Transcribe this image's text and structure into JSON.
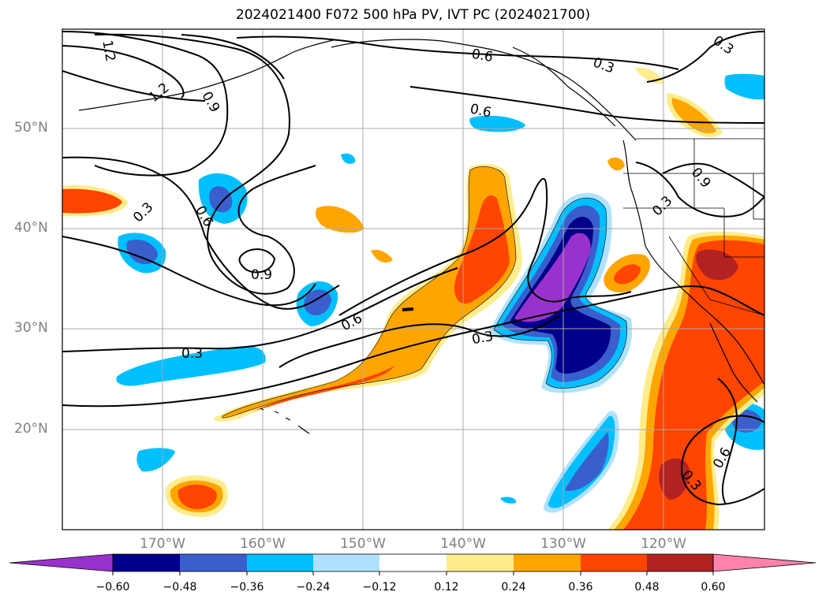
{
  "title": "2024021400 F072 500 hPa PV, IVT PC (2024021700)",
  "lat_labels": [
    "50°N",
    "40°N",
    "30°N",
    "20°N"
  ],
  "lon_labels": [
    "170°W",
    "160°W",
    "150°W",
    "140°W",
    "130°W",
    "120°W"
  ],
  "contour_labels": [
    "1.2",
    "1.2",
    "0.9",
    "0.9",
    "0.6",
    "0.6",
    "0.6",
    "0.6",
    "0.3",
    "0.3",
    "0.3",
    "0.3",
    "0.3",
    "0.9",
    "0.3",
    "0.6",
    "0.3"
  ],
  "colorbar": {
    "ticks": [
      "−0.60",
      "−0.48",
      "−0.36",
      "−0.24",
      "−0.12",
      "0.12",
      "0.24",
      "0.36",
      "0.48",
      "0.60"
    ],
    "colors": [
      "#9932cc",
      "#00008b",
      "#3a5fcd",
      "#00bfff",
      "#b0e2ff",
      "#ffffff",
      "#ffec8b",
      "#ffa500",
      "#ff4500",
      "#b22222",
      "#ff82ab"
    ]
  },
  "fill_colors": {
    "neg_low": "#b0e2ff",
    "neg_mid": "#00bfff",
    "neg_high": "#3a5fcd",
    "neg_vhigh": "#00008b",
    "neg_max": "#9932cc",
    "pos_low": "#ffec8b",
    "pos_mid": "#ffa500",
    "pos_high": "#ff4500",
    "pos_vhigh": "#b22222"
  }
}
